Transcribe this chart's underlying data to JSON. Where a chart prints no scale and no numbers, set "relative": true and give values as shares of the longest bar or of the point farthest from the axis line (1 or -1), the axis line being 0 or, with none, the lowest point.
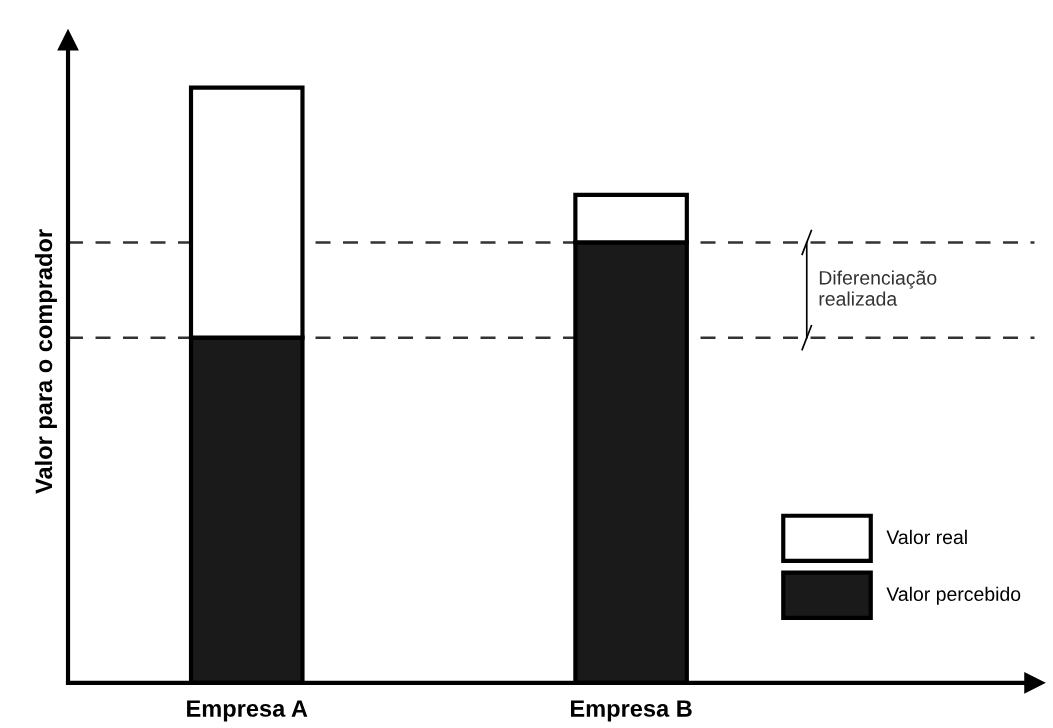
{
  "chart_data": {
    "type": "bar",
    "stacked": true,
    "relative": true,
    "ylabel": "Valor para o comprador",
    "categories": [
      "Empresa A",
      "Empresa B"
    ],
    "series": [
      {
        "name": "Valor percebido",
        "color": "#1a1a1a",
        "values": [
          0.58,
          0.74
        ]
      },
      {
        "name": "Valor real",
        "color": "#ffffff",
        "values": [
          0.42,
          0.08
        ]
      }
    ],
    "ref_lines": [
      {
        "axis": "y",
        "value": 0.74,
        "color": "#333333",
        "line_style": "dashed"
      },
      {
        "axis": "y",
        "value": 0.58,
        "color": "#333333",
        "line_style": "dashed"
      }
    ],
    "annotations": [
      "Diferenciação\nrealizada"
    ],
    "legend": "bottom right",
    "grid": false
  }
}
